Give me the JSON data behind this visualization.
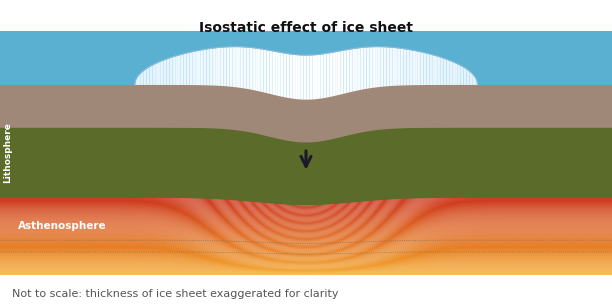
{
  "title": "Isostatic effect of ice sheet",
  "subtitle": "Not to scale: thickness of ice sheet exaggerated for clarity",
  "title_fontsize": 10,
  "subtitle_fontsize": 8,
  "bg_color": "#ffffff",
  "fig_width": 6.12,
  "fig_height": 3.06,
  "lithosphere_label": "Lithosphere",
  "asthenosphere_label": "Asthenosphere",
  "colors": {
    "sky_blue": "#5ab0d0",
    "land_brown": "#a08878",
    "rock_green": "#5a6b2a",
    "asth_red": "#cc3322",
    "asth_orange": "#f5a500",
    "asth_yellow": "#f5c840",
    "arrow_color": "#1a1a2a",
    "dot_color": "#2a5050"
  }
}
